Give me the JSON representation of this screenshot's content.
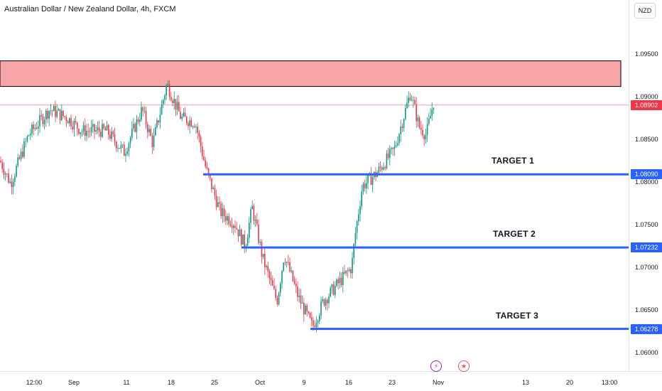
{
  "header": {
    "title": "Australian Dollar / New Zealand Dollar, 4h, FXCM",
    "currency": "NZD"
  },
  "chart_data": {
    "type": "candlestick",
    "symbol": "AUD/NZD",
    "timeframe": "4h",
    "source": "FXCM",
    "y_range": [
      1.0575,
      1.0985
    ],
    "y_ticks": [
      "1.09500",
      "1.09000",
      "1.08500",
      "1.08000",
      "1.07500",
      "1.07000",
      "1.06500",
      "1.06000"
    ],
    "x_ticks": [
      "12:00",
      "Sep",
      "11",
      "18",
      "25",
      "Oct",
      "9",
      "16",
      "23",
      "Nov",
      "13",
      "20",
      "13:00"
    ],
    "x_tick_pos": [
      48,
      104,
      178,
      241,
      302,
      366,
      428,
      491,
      552,
      617,
      740,
      802,
      858
    ],
    "resistance_zone": {
      "from": 1.0912,
      "to": 1.0942,
      "color": "#f7a5a8"
    },
    "current_price": {
      "value": "1.08902",
      "color": "#f23645"
    },
    "levels": [
      {
        "label": "TARGET 1",
        "price": "1.08090",
        "value": 1.0809,
        "color": "#2962ff"
      },
      {
        "label": "TARGET 2",
        "price": "1.07232",
        "value": 1.07232,
        "color": "#2962ff"
      },
      {
        "label": "TARGET 3",
        "price": "1.06278",
        "value": 1.06278,
        "color": "#2962ff"
      }
    ],
    "trend_anchors": [
      [
        0,
        1.0825
      ],
      [
        15,
        1.0798
      ],
      [
        40,
        1.0855
      ],
      [
        70,
        1.0885
      ],
      [
        95,
        1.0875
      ],
      [
        115,
        1.086
      ],
      [
        150,
        1.086
      ],
      [
        175,
        1.0835
      ],
      [
        200,
        1.0885
      ],
      [
        215,
        1.0845
      ],
      [
        235,
        1.0915
      ],
      [
        255,
        1.0875
      ],
      [
        275,
        1.087
      ],
      [
        290,
        1.0815
      ],
      [
        310,
        1.0765
      ],
      [
        330,
        1.0752
      ],
      [
        345,
        1.0725
      ],
      [
        355,
        1.077
      ],
      [
        370,
        1.071
      ],
      [
        390,
        1.066
      ],
      [
        400,
        1.0715
      ],
      [
        420,
        1.0665
      ],
      [
        440,
        1.063
      ],
      [
        455,
        1.066
      ],
      [
        475,
        1.068
      ],
      [
        495,
        1.07
      ],
      [
        500,
        1.0738
      ],
      [
        510,
        1.0795
      ],
      [
        530,
        1.081
      ],
      [
        555,
        1.0838
      ],
      [
        578,
        1.0905
      ],
      [
        590,
        1.0865
      ],
      [
        600,
        1.0855
      ],
      [
        612,
        1.09
      ]
    ],
    "candle_colors": {
      "up": "#089981",
      "down": "#f23645"
    }
  },
  "events": [
    {
      "name": "lightning",
      "glyph": "⚡",
      "color": "#9c27b0"
    },
    {
      "name": "flag",
      "glyph": "★",
      "color": "#ef5350"
    }
  ]
}
